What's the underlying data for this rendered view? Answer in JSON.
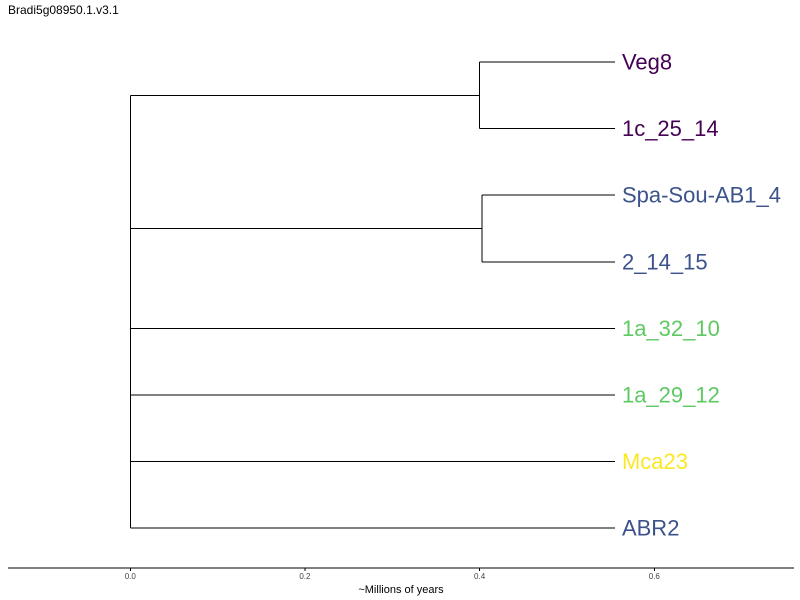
{
  "title": "Bradi5g08950.1.v3.1",
  "axis": {
    "label": "~Millions of years",
    "ticks": [
      0.0,
      0.2,
      0.4,
      0.6
    ],
    "tick_labels": [
      "0.0",
      "0.2",
      "0.4",
      "0.6"
    ],
    "range": [
      -0.14,
      0.76
    ]
  },
  "tips": [
    {
      "label": "Veg8",
      "color": "#440154"
    },
    {
      "label": "1c_25_14",
      "color": "#440154"
    },
    {
      "label": "Spa-Sou-AB1_4",
      "color": "#3b528b"
    },
    {
      "label": "2_14_15",
      "color": "#3b528b"
    },
    {
      "label": "1a_32_10",
      "color": "#5ec962"
    },
    {
      "label": "1a_29_12",
      "color": "#5ec962"
    },
    {
      "label": "Mca23",
      "color": "#fde725"
    },
    {
      "label": "ABR2",
      "color": "#3b528b"
    }
  ],
  "tree": {
    "depth": 0.0,
    "children": [
      {
        "depth": 0.4,
        "children": [
          {
            "tip": 0,
            "depth": 0.555
          },
          {
            "tip": 1,
            "depth": 0.555
          }
        ]
      },
      {
        "depth": 0.403,
        "children": [
          {
            "tip": 2,
            "depth": 0.555
          },
          {
            "tip": 3,
            "depth": 0.555
          }
        ]
      },
      {
        "tip": 4,
        "depth": 0.555
      },
      {
        "tip": 5,
        "depth": 0.555
      },
      {
        "tip": 6,
        "depth": 0.555
      },
      {
        "tip": 7,
        "depth": 0.555
      }
    ]
  }
}
